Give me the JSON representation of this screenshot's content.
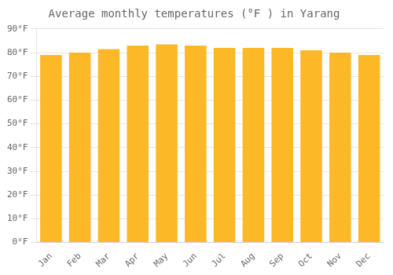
{
  "chart_data": {
    "type": "bar",
    "title": "Average monthly temperatures (°F ) in Yarang",
    "categories": [
      "Jan",
      "Feb",
      "Mar",
      "Apr",
      "May",
      "Jun",
      "Jul",
      "Aug",
      "Sep",
      "Oct",
      "Nov",
      "Dec"
    ],
    "values": [
      79,
      80,
      81.5,
      83,
      83.5,
      83,
      82,
      82,
      82,
      81,
      80,
      79
    ],
    "color": "#FDB827",
    "ylim": [
      0,
      90
    ],
    "yticks": [
      {
        "value": 0,
        "label": "0°F"
      },
      {
        "value": 10,
        "label": "10°F"
      },
      {
        "value": 20,
        "label": "20°F"
      },
      {
        "value": 30,
        "label": "30°F"
      },
      {
        "value": 40,
        "label": "40°F"
      },
      {
        "value": 50,
        "label": "50°F"
      },
      {
        "value": 60,
        "label": "60°F"
      },
      {
        "value": 70,
        "label": "70°F"
      },
      {
        "value": 80,
        "label": "80°F"
      },
      {
        "value": 90,
        "label": "90°F"
      }
    ],
    "grid": true
  }
}
